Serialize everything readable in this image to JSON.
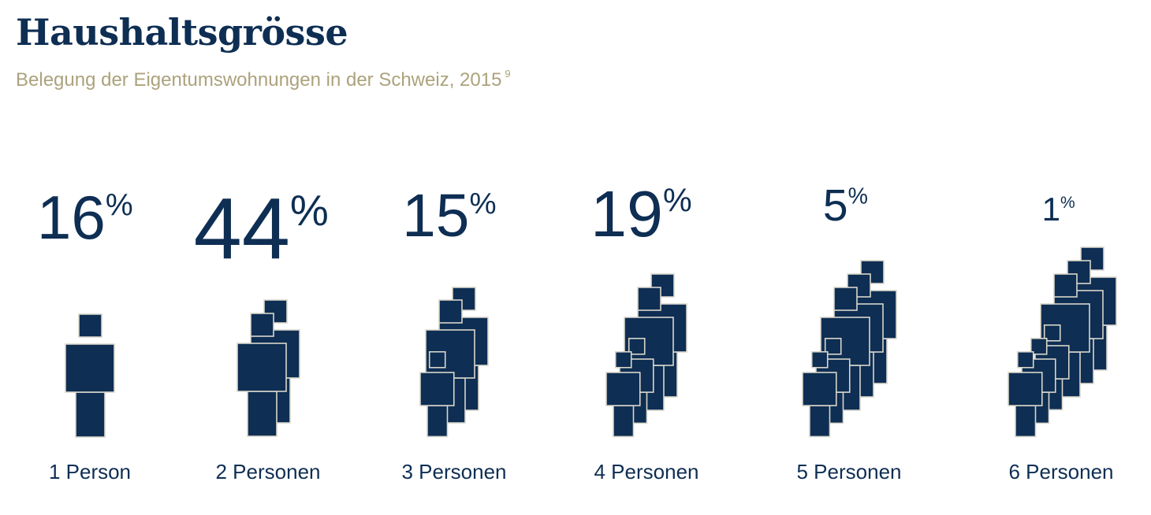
{
  "header": {
    "title": "Haushaltsgrösse",
    "subtitle": "Belegung der Eigentumswohnungen in der Schweiz, 2015",
    "footnote_ref": "9"
  },
  "colors": {
    "primary": "#0e2e53",
    "accent": "#aca27c",
    "outline": "#d9d6cb"
  },
  "chart_data": {
    "type": "pictograph",
    "title": "Haushaltsgrösse",
    "subtitle": "Belegung der Eigentumswohnungen in der Schweiz, 2015",
    "unit": "%",
    "categories": [
      "1 Person",
      "2 Personen",
      "3 Personen",
      "4 Personen",
      "5 Personen",
      "6 Personen"
    ],
    "values": [
      16,
      44,
      15,
      19,
      5,
      1
    ],
    "persons_per_icon_group": [
      1,
      2,
      3,
      4,
      5,
      6
    ],
    "value_labels": [
      "16",
      "44",
      "15",
      "19",
      "5",
      "1"
    ]
  }
}
